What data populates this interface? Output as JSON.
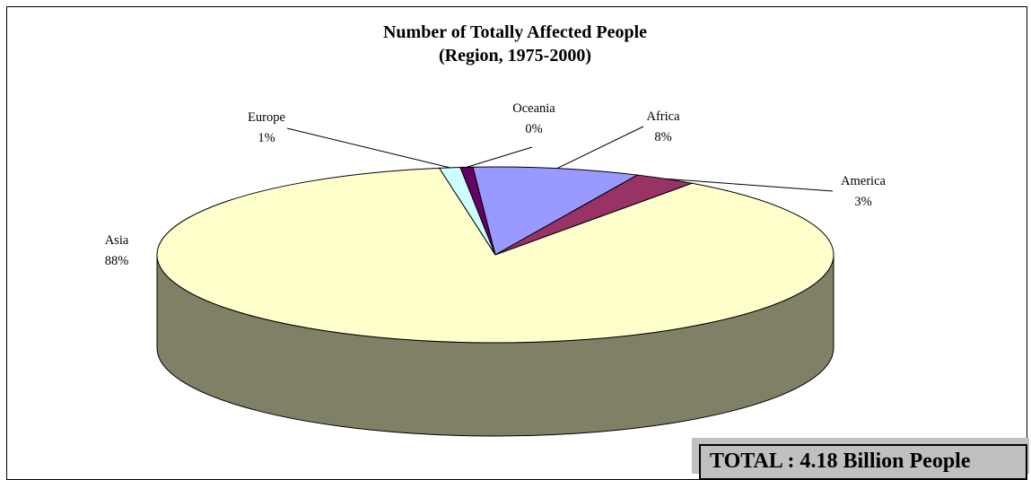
{
  "chart_data": {
    "type": "pie",
    "title": "Number of Totally Affected People",
    "subtitle": "(Region, 1975-2000)",
    "slices": [
      {
        "name": "Africa",
        "value": 8,
        "label": "8%",
        "color": "#9999ff"
      },
      {
        "name": "America",
        "value": 3,
        "label": "3%",
        "color": "#993366"
      },
      {
        "name": "Asia",
        "value": 88,
        "label": "88%",
        "color": "#ffffcc"
      },
      {
        "name": "Europe",
        "value": 1,
        "label": "1%",
        "color": "#ccffff"
      },
      {
        "name": "Oceania",
        "value": 0,
        "label": "0%",
        "color": "#660066"
      }
    ],
    "legend": "none",
    "style": "3d-pie"
  },
  "colors": {
    "side_shadow": "#808066",
    "outline": "#000000",
    "total_box": "#c0c0c0"
  },
  "annotation": {
    "total": "TOTAL : 4.18 Billion People"
  }
}
